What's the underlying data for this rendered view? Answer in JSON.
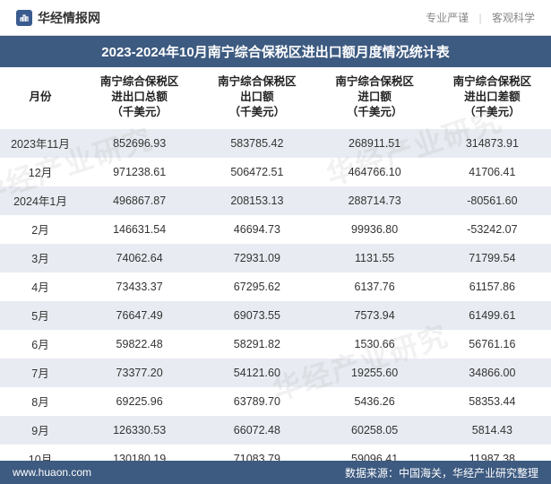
{
  "header": {
    "brand": "华经情报网",
    "tagline_left": "专业严谨",
    "tagline_right": "客观科学"
  },
  "title": "2023-2024年10月南宁综合保税区进出口额月度情况统计表",
  "table": {
    "columns": [
      "月份",
      "南宁综合保税区\n进出口总额\n（千美元）",
      "南宁综合保税区\n出口额\n（千美元）",
      "南宁综合保税区\n进口额\n（千美元）",
      "南宁综合保税区\n进出口差额\n（千美元）"
    ],
    "rows": [
      [
        "2023年11月",
        "852696.93",
        "583785.42",
        "268911.51",
        "314873.91"
      ],
      [
        "12月",
        "971238.61",
        "506472.51",
        "464766.10",
        "41706.41"
      ],
      [
        "2024年1月",
        "496867.87",
        "208153.13",
        "288714.73",
        "-80561.60"
      ],
      [
        "2月",
        "146631.54",
        "46694.73",
        "99936.80",
        "-53242.07"
      ],
      [
        "3月",
        "74062.64",
        "72931.09",
        "1131.55",
        "71799.54"
      ],
      [
        "4月",
        "73433.37",
        "67295.62",
        "6137.76",
        "61157.86"
      ],
      [
        "5月",
        "76647.49",
        "69073.55",
        "7573.94",
        "61499.61"
      ],
      [
        "6月",
        "59822.48",
        "58291.82",
        "1530.66",
        "56761.16"
      ],
      [
        "7月",
        "73377.20",
        "54121.60",
        "19255.60",
        "34866.00"
      ],
      [
        "8月",
        "69225.96",
        "63789.70",
        "5436.26",
        "58353.44"
      ],
      [
        "9月",
        "126330.53",
        "66072.48",
        "60258.05",
        "5814.43"
      ],
      [
        "10月",
        "130180.19",
        "71083.79",
        "59096.41",
        "11987.38"
      ]
    ]
  },
  "footer": {
    "site": "www.huaon.com",
    "source": "数据来源：中国海关，华经产业研究整理"
  },
  "watermark": "华经产业研究",
  "colors": {
    "header_bg": "#3d5a80",
    "row_odd_bg": "#e8ecf2",
    "row_even_bg": "#ffffff",
    "text": "#333333"
  }
}
